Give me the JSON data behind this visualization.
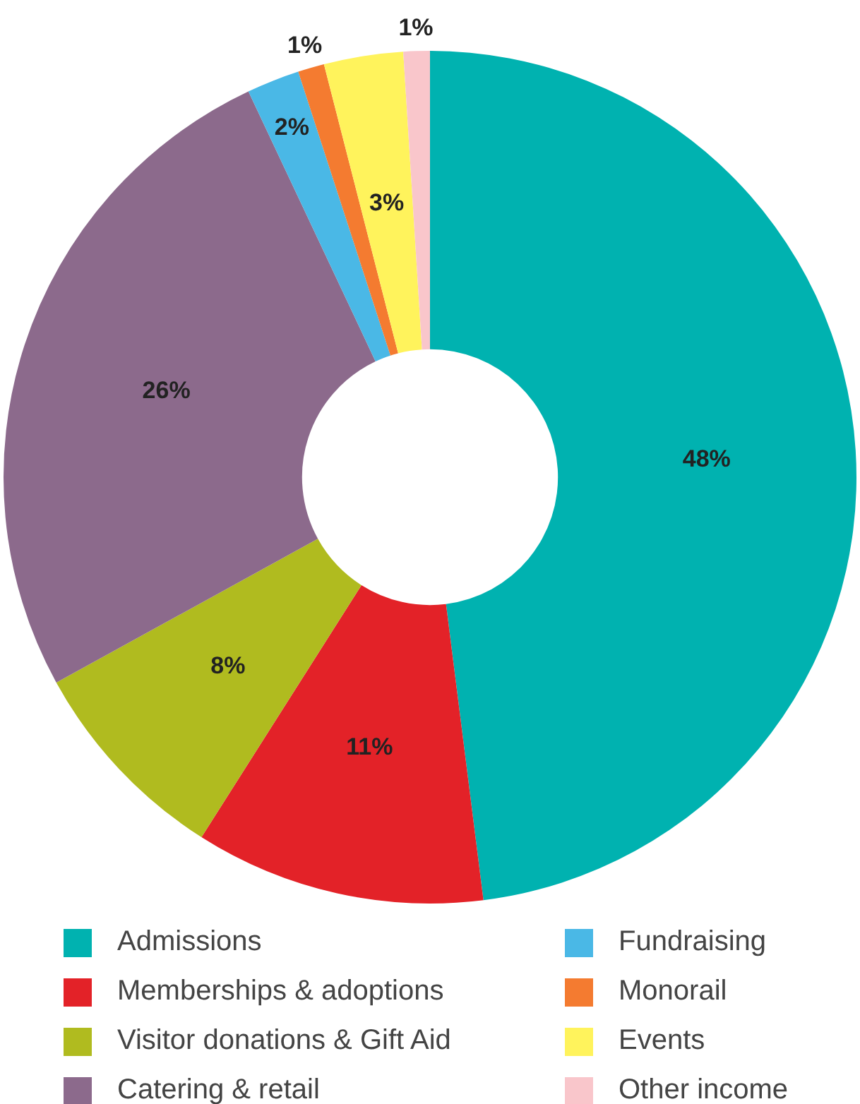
{
  "chart_data": {
    "type": "donut",
    "categories": [
      "Admissions",
      "Memberships & adoptions",
      "Visitor donations & Gift Aid",
      "Catering & retail",
      "Fundraising",
      "Monorail",
      "Events",
      "Other income"
    ],
    "values": [
      48,
      11,
      8,
      26,
      2,
      1,
      3,
      1
    ],
    "colors": [
      "#00b2b0",
      "#e32228",
      "#b0bb1f",
      "#8c6a8c",
      "#4ab8e6",
      "#f47b30",
      "#fff35c",
      "#f9c6cb"
    ],
    "value_labels": [
      "48%",
      "11%",
      "8%",
      "26%",
      "2%",
      "1%",
      "3%",
      "1%"
    ],
    "legend": "bottom"
  }
}
